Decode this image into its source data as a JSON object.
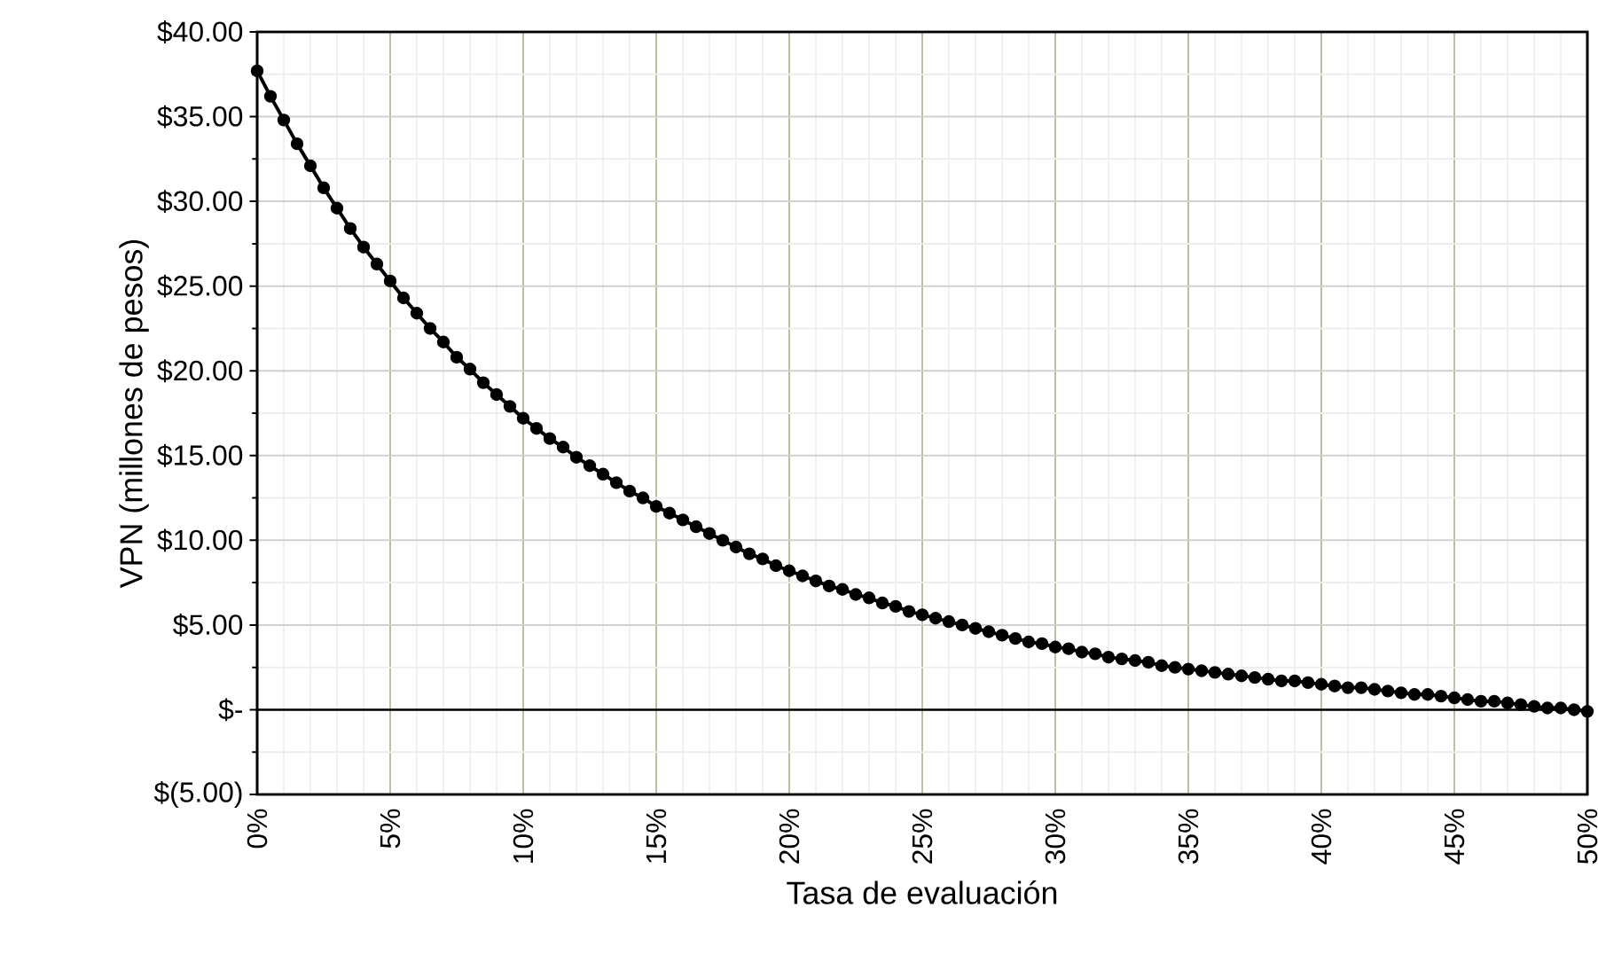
{
  "chart_data": {
    "type": "line",
    "xlabel": "Tasa de evaluación",
    "ylabel": "VPN (millones de pesos)",
    "x": [
      0,
      0.5,
      1,
      1.5,
      2,
      2.5,
      3,
      3.5,
      4,
      4.5,
      5,
      5.5,
      6,
      6.5,
      7,
      7.5,
      8,
      8.5,
      9,
      9.5,
      10,
      10.5,
      11,
      11.5,
      12,
      12.5,
      13,
      13.5,
      14,
      14.5,
      15,
      15.5,
      16,
      16.5,
      17,
      17.5,
      18,
      18.5,
      19,
      19.5,
      20,
      20.5,
      21,
      21.5,
      22,
      22.5,
      23,
      23.5,
      24,
      24.5,
      25,
      25.5,
      26,
      26.5,
      27,
      27.5,
      28,
      28.5,
      29,
      29.5,
      30,
      30.5,
      31,
      31.5,
      32,
      32.5,
      33,
      33.5,
      34,
      34.5,
      35,
      35.5,
      36,
      36.5,
      37,
      37.5,
      38,
      38.5,
      39,
      39.5,
      40,
      40.5,
      41,
      41.5,
      42,
      42.5,
      43,
      43.5,
      44,
      44.5,
      45,
      45.5,
      46,
      46.5,
      47,
      47.5,
      48,
      48.5,
      49,
      49.5,
      50
    ],
    "series": [
      {
        "color": "#000000",
        "values": [
          37.7,
          36.2,
          34.8,
          33.4,
          32.1,
          30.8,
          29.6,
          28.4,
          27.3,
          26.3,
          25.3,
          24.3,
          23.4,
          22.5,
          21.7,
          20.8,
          20.1,
          19.3,
          18.6,
          17.9,
          17.2,
          16.6,
          16.0,
          15.5,
          14.9,
          14.4,
          13.9,
          13.4,
          12.9,
          12.5,
          12.0,
          11.6,
          11.2,
          10.8,
          10.4,
          10.0,
          9.6,
          9.2,
          8.9,
          8.5,
          8.2,
          7.9,
          7.6,
          7.3,
          7.1,
          6.8,
          6.6,
          6.3,
          6.1,
          5.8,
          5.6,
          5.4,
          5.2,
          5.0,
          4.8,
          4.6,
          4.4,
          4.2,
          4.0,
          3.9,
          3.7,
          3.6,
          3.4,
          3.3,
          3.1,
          3.0,
          2.9,
          2.8,
          2.6,
          2.5,
          2.4,
          2.3,
          2.2,
          2.1,
          2.0,
          1.9,
          1.8,
          1.7,
          1.7,
          1.6,
          1.5,
          1.4,
          1.3,
          1.3,
          1.2,
          1.1,
          1.0,
          0.9,
          0.9,
          0.8,
          0.7,
          0.6,
          0.5,
          0.5,
          0.4,
          0.3,
          0.2,
          0.1,
          0.1,
          0.0,
          -0.1
        ]
      }
    ],
    "xlim": [
      0,
      50
    ],
    "xticks": [
      {
        "value": 0,
        "label": "0%"
      },
      {
        "value": 5,
        "label": "5%"
      },
      {
        "value": 10,
        "label": "10%"
      },
      {
        "value": 15,
        "label": "15%"
      },
      {
        "value": 20,
        "label": "20%"
      },
      {
        "value": 25,
        "label": "25%"
      },
      {
        "value": 30,
        "label": "30%"
      },
      {
        "value": 35,
        "label": "35%"
      },
      {
        "value": 40,
        "label": "40%"
      },
      {
        "value": 45,
        "label": "45%"
      },
      {
        "value": 50,
        "label": "50%"
      }
    ],
    "ylim": [
      -5,
      40
    ],
    "yticks": [
      {
        "value": -5,
        "label": "$(5.00)"
      },
      {
        "value": 0,
        "label": "$-"
      },
      {
        "value": 5,
        "label": "$5.00"
      },
      {
        "value": 10,
        "label": "$10.00"
      },
      {
        "value": 15,
        "label": "$15.00"
      },
      {
        "value": 20,
        "label": "$20.00"
      },
      {
        "value": 25,
        "label": "$25.00"
      },
      {
        "value": 30,
        "label": "$30.00"
      },
      {
        "value": 35,
        "label": "$35.00"
      },
      {
        "value": 40,
        "label": "$40.00"
      }
    ],
    "grid": true,
    "legend": false,
    "marker": "circle",
    "line_style": "solid"
  }
}
